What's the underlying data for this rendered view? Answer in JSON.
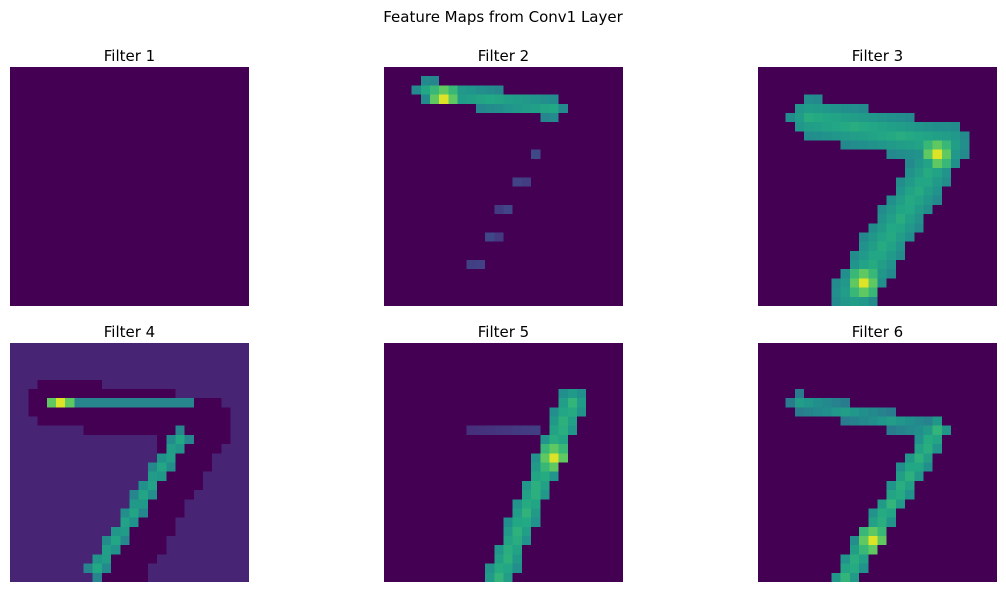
{
  "chart_data": {
    "type": "heatmap",
    "title": "Feature Maps from Conv1 Layer",
    "colormap": "viridis",
    "grid_size": 26,
    "panels": [
      {
        "title": "Filter 1",
        "background": 0.0,
        "strokes": []
      },
      {
        "title": "Filter 2",
        "background": 0.0,
        "strokes": [
          {
            "path": [
              [
                4,
                2
              ],
              [
                18,
                4
              ]
            ],
            "value": 0.6,
            "width": 1.2,
            "peak": {
              "at": [
                6,
                3
              ],
              "value": 0.95
            }
          },
          {
            "path": [
              [
                16,
                9
              ],
              [
                9,
                22
              ]
            ],
            "value": 0.22,
            "width": 0.8,
            "sparse": true
          }
        ]
      },
      {
        "title": "Filter 3",
        "background": 0.0,
        "strokes": [
          {
            "path": [
              [
                5,
                5
              ],
              [
                20,
                8
              ]
            ],
            "value": 0.62,
            "width": 2.2,
            "peak": {
              "at": [
                19,
                9
              ],
              "value": 0.95
            }
          },
          {
            "path": [
              [
                20,
                8
              ],
              [
                10,
                24
              ]
            ],
            "value": 0.62,
            "width": 2.4,
            "peak": {
              "at": [
                11,
                23
              ],
              "value": 0.95
            }
          }
        ]
      },
      {
        "title": "Filter 4",
        "background": 0.1,
        "strokes": [
          {
            "path": [
              [
                4,
                6
              ],
              [
                21,
                8
              ]
            ],
            "value": 0.0,
            "width": 2.6
          },
          {
            "path": [
              [
                21,
                8
              ],
              [
                11,
                25
              ]
            ],
            "value": 0.0,
            "width": 2.8
          },
          {
            "path": [
              [
                4,
                6
              ],
              [
                19,
                6
              ]
            ],
            "value": 0.45,
            "width": 0.9,
            "peak": {
              "at": [
                5,
                6
              ],
              "value": 0.95
            }
          },
          {
            "path": [
              [
                18,
                10
              ],
              [
                9,
                24
              ]
            ],
            "value": 0.6,
            "width": 1.0
          }
        ]
      },
      {
        "title": "Filter 5",
        "background": 0.0,
        "strokes": [
          {
            "path": [
              [
                8,
                5
              ],
              [
                11,
                5
              ]
            ],
            "value": 0.15,
            "width": 0.6,
            "sparse": true
          },
          {
            "path": [
              [
                6,
                8
              ],
              [
                16,
                9
              ]
            ],
            "value": 0.18,
            "width": 0.7,
            "sparse": true
          },
          {
            "path": [
              [
                20,
                6
              ],
              [
                12,
                25
              ]
            ],
            "value": 0.65,
            "width": 1.5,
            "peak": {
              "at": [
                18,
                12
              ],
              "value": 0.95
            }
          }
        ]
      },
      {
        "title": "Filter 6",
        "background": 0.0,
        "strokes": [
          {
            "path": [
              [
                4,
                6
              ],
              [
                19,
                9
              ]
            ],
            "value": 0.55,
            "width": 1.0
          },
          {
            "path": [
              [
                19,
                9
              ],
              [
                9,
                25
              ]
            ],
            "value": 0.65,
            "width": 1.3,
            "peak": {
              "at": [
                12,
                21
              ],
              "value": 0.95
            }
          }
        ]
      }
    ]
  }
}
